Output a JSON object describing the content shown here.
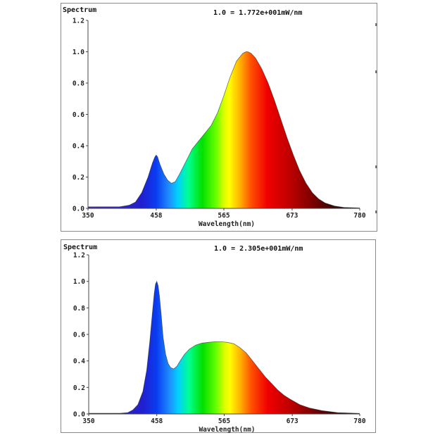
{
  "chart_data": [
    {
      "type": "area",
      "title": "Spectrum",
      "units_note": "1.0 = 1.772e+001mW/nm",
      "xlabel": "Wavelength(nm)",
      "ylabel": "",
      "xlim": [
        350,
        780
      ],
      "ylim": [
        0,
        1.2
      ],
      "xticks": [
        350,
        458,
        565,
        673,
        780
      ],
      "yticks": [
        "0.0",
        "0.2",
        "0.4",
        "0.6",
        "0.8",
        "1.0",
        "1.2"
      ],
      "grid": false,
      "fill": "wavelength-spectrum-gradient",
      "x": [
        350,
        400,
        415,
        425,
        435,
        445,
        452,
        456,
        458,
        460,
        464,
        470,
        476,
        482,
        488,
        495,
        505,
        515,
        525,
        535,
        545,
        555,
        565,
        575,
        585,
        595,
        600,
        603,
        608,
        615,
        625,
        635,
        645,
        655,
        665,
        675,
        685,
        695,
        705,
        715,
        725,
        740,
        755,
        780
      ],
      "y": [
        0.01,
        0.01,
        0.02,
        0.04,
        0.1,
        0.2,
        0.29,
        0.33,
        0.34,
        0.33,
        0.28,
        0.22,
        0.18,
        0.16,
        0.17,
        0.22,
        0.3,
        0.38,
        0.43,
        0.48,
        0.53,
        0.61,
        0.72,
        0.84,
        0.94,
        0.99,
        1.0,
        1.0,
        0.99,
        0.96,
        0.89,
        0.8,
        0.69,
        0.57,
        0.45,
        0.34,
        0.24,
        0.16,
        0.1,
        0.06,
        0.035,
        0.015,
        0.006,
        0.003
      ]
    },
    {
      "type": "area",
      "title": "Spectrum",
      "units_note": "1.0 = 2.305e+001mW/nm",
      "xlabel": "Wavelength(nm)",
      "ylabel": "",
      "xlim": [
        350,
        780
      ],
      "ylim": [
        0,
        1.2
      ],
      "xticks": [
        350,
        458,
        565,
        673,
        780
      ],
      "yticks": [
        "0.0",
        "0.2",
        "0.4",
        "0.6",
        "0.8",
        "1.0",
        "1.2"
      ],
      "grid": false,
      "fill": "wavelength-spectrum-gradient",
      "x": [
        350,
        400,
        412,
        420,
        428,
        436,
        442,
        447,
        451,
        454,
        456,
        458,
        460,
        462,
        465,
        468,
        472,
        476,
        480,
        485,
        490,
        495,
        502,
        510,
        520,
        530,
        540,
        550,
        560,
        570,
        580,
        590,
        600,
        610,
        620,
        630,
        640,
        650,
        660,
        670,
        685,
        700,
        720,
        745,
        780
      ],
      "y": [
        0.005,
        0.005,
        0.01,
        0.03,
        0.07,
        0.17,
        0.33,
        0.55,
        0.76,
        0.91,
        0.98,
        1.0,
        0.97,
        0.9,
        0.75,
        0.58,
        0.45,
        0.38,
        0.35,
        0.34,
        0.36,
        0.4,
        0.45,
        0.49,
        0.52,
        0.535,
        0.54,
        0.545,
        0.545,
        0.54,
        0.53,
        0.5,
        0.46,
        0.4,
        0.34,
        0.28,
        0.23,
        0.18,
        0.14,
        0.11,
        0.07,
        0.045,
        0.025,
        0.01,
        0.004
      ]
    }
  ]
}
